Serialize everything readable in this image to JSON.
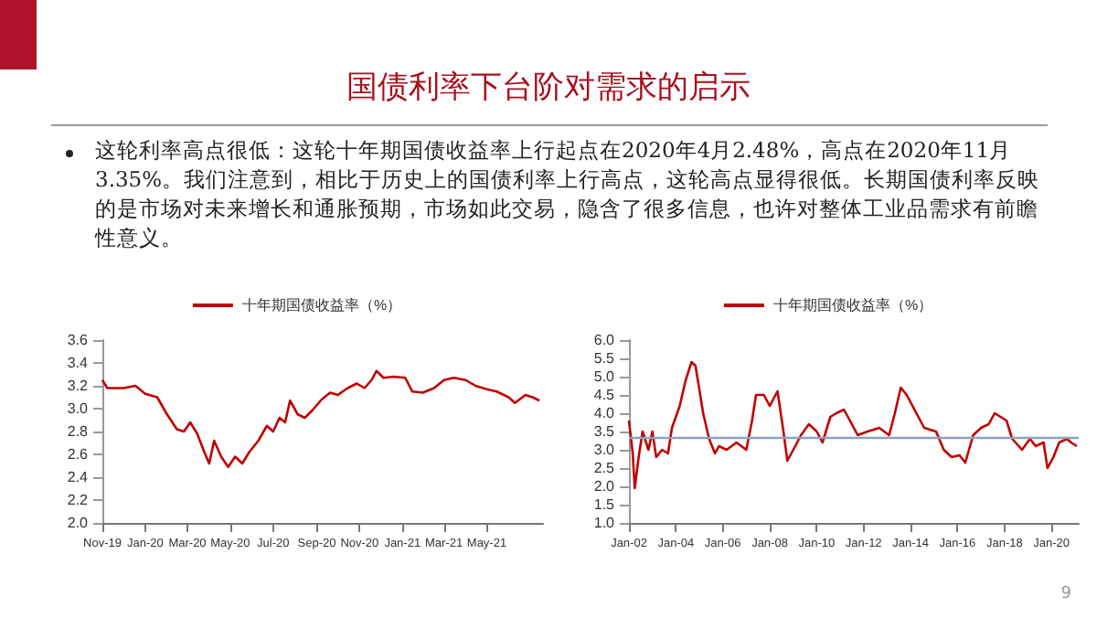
{
  "chart_data": [
    {
      "type": "other",
      "title": "国债利率下台阶对需求的启示",
      "annotations": [
        "这轮利率高点很低：这轮十年期国债收益率上行起点在2020年4月2.48%，高点在2020年11月3.35%。我们注意到，相比于历史上的国债利率上行高点，这轮高点显得很低。长期国债利率反映的是市场对未来增长和通胀预期，市场如此交易，隐含了很多信息，也许对整体工业品需求有前瞻性意义。",
        "9"
      ]
    },
    {
      "type": "line",
      "legend": "top",
      "grid": false,
      "marker": "none",
      "line_style": "solid",
      "xlim": [
        "2019-11-01",
        "2021-07-20"
      ],
      "xticks": [
        {
          "value": "2019-11-01",
          "label": "Nov-19"
        },
        {
          "value": "2020-01-01",
          "label": "Jan-20"
        },
        {
          "value": "2020-03-01",
          "label": "Mar-20"
        },
        {
          "value": "2020-05-01",
          "label": "May-20"
        },
        {
          "value": "2020-07-01",
          "label": "Jul-20"
        },
        {
          "value": "2020-09-01",
          "label": "Sep-20"
        },
        {
          "value": "2020-11-01",
          "label": "Nov-20"
        },
        {
          "value": "2021-01-01",
          "label": "Jan-21"
        },
        {
          "value": "2021-03-01",
          "label": "Mar-21"
        },
        {
          "value": "2021-05-01",
          "label": "May-21"
        }
      ],
      "ylim": [
        2.0,
        3.6
      ],
      "yticks": [
        {
          "value": 2.0,
          "label": "2.0"
        },
        {
          "value": 2.2,
          "label": "2.2"
        },
        {
          "value": 2.4,
          "label": "2.4"
        },
        {
          "value": 2.6,
          "label": "2.6"
        },
        {
          "value": 2.8,
          "label": "2.8"
        },
        {
          "value": 3.0,
          "label": "3.0"
        },
        {
          "value": 3.2,
          "label": "3.2"
        },
        {
          "value": 3.4,
          "label": "3.4"
        },
        {
          "value": 3.6,
          "label": "3.6"
        }
      ],
      "series": [
        {
          "name": "十年期国债收益率（%）",
          "color": "#c00000",
          "x": [
            "2019-11-01",
            "2019-11-08",
            "2019-12-01",
            "2019-12-18",
            "2020-01-01",
            "2020-01-18",
            "2020-02-01",
            "2020-02-15",
            "2020-02-25",
            "2020-03-05",
            "2020-03-15",
            "2020-03-25",
            "2020-04-01",
            "2020-04-08",
            "2020-04-18",
            "2020-04-28",
            "2020-05-08",
            "2020-05-18",
            "2020-05-28",
            "2020-06-10",
            "2020-06-22",
            "2020-07-01",
            "2020-07-10",
            "2020-07-18",
            "2020-07-25",
            "2020-08-05",
            "2020-08-15",
            "2020-08-25",
            "2020-09-08",
            "2020-09-20",
            "2020-10-01",
            "2020-10-15",
            "2020-10-28",
            "2020-11-08",
            "2020-11-18",
            "2020-11-25",
            "2020-12-05",
            "2020-12-20",
            "2021-01-05",
            "2021-01-15",
            "2021-01-30",
            "2021-02-15",
            "2021-03-01",
            "2021-03-15",
            "2021-04-01",
            "2021-04-15",
            "2021-05-01",
            "2021-05-15",
            "2021-06-01",
            "2021-06-10",
            "2021-06-25",
            "2021-07-05",
            "2021-07-15"
          ],
          "values": [
            3.25,
            3.18,
            3.18,
            3.2,
            3.13,
            3.1,
            2.95,
            2.82,
            2.8,
            2.88,
            2.78,
            2.62,
            2.52,
            2.72,
            2.58,
            2.49,
            2.58,
            2.52,
            2.62,
            2.72,
            2.85,
            2.8,
            2.92,
            2.88,
            3.07,
            2.95,
            2.92,
            2.98,
            3.08,
            3.14,
            3.12,
            3.18,
            3.22,
            3.18,
            3.25,
            3.33,
            3.27,
            3.28,
            3.27,
            3.15,
            3.14,
            3.18,
            3.25,
            3.27,
            3.25,
            3.2,
            3.17,
            3.15,
            3.1,
            3.05,
            3.12,
            3.1,
            3.07
          ]
        }
      ]
    },
    {
      "type": "line",
      "legend": "top",
      "grid": false,
      "marker": "none",
      "line_style": "solid",
      "xlim": [
        "2002-01",
        "2021-03"
      ],
      "xticks": [
        {
          "value": "2002-01",
          "label": "Jan-02"
        },
        {
          "value": "2004-01",
          "label": "Jan-04"
        },
        {
          "value": "2006-01",
          "label": "Jan-06"
        },
        {
          "value": "2008-01",
          "label": "Jan-08"
        },
        {
          "value": "2010-01",
          "label": "Jan-10"
        },
        {
          "value": "2012-01",
          "label": "Jan-12"
        },
        {
          "value": "2014-01",
          "label": "Jan-14"
        },
        {
          "value": "2016-01",
          "label": "Jan-16"
        },
        {
          "value": "2018-01",
          "label": "Jan-18"
        },
        {
          "value": "2020-01",
          "label": "Jan-20"
        }
      ],
      "ylim": [
        1.0,
        6.0
      ],
      "yticks": [
        {
          "value": 1.0,
          "label": "1.0"
        },
        {
          "value": 1.5,
          "label": "1.5"
        },
        {
          "value": 2.0,
          "label": "2.0"
        },
        {
          "value": 2.5,
          "label": "2.5"
        },
        {
          "value": 3.0,
          "label": "3.0"
        },
        {
          "value": 3.5,
          "label": "3.5"
        },
        {
          "value": 4.0,
          "label": "4.0"
        },
        {
          "value": 4.5,
          "label": "4.5"
        },
        {
          "value": 5.0,
          "label": "5.0"
        },
        {
          "value": 5.5,
          "label": "5.5"
        },
        {
          "value": 6.0,
          "label": "6.0"
        }
      ],
      "ref_lines": [
        {
          "axis": "y",
          "value": 3.35,
          "label": null,
          "color": "#8ca3bd"
        }
      ],
      "series": [
        {
          "name": "十年期国债收益率（%）",
          "color": "#c00000",
          "x": [
            "2002-01",
            "2002-03",
            "2002-04",
            "2002-06",
            "2002-08",
            "2002-11",
            "2003-01",
            "2003-03",
            "2003-06",
            "2003-09",
            "2003-11",
            "2004-03",
            "2004-06",
            "2004-09",
            "2004-11",
            "2005-03",
            "2005-06",
            "2005-09",
            "2005-11",
            "2006-03",
            "2006-08",
            "2007-01",
            "2007-04",
            "2007-06",
            "2007-10",
            "2008-01",
            "2008-05",
            "2008-08",
            "2008-10",
            "2009-02",
            "2009-05",
            "2009-09",
            "2010-01",
            "2010-04",
            "2010-08",
            "2010-11",
            "2011-03",
            "2011-06",
            "2011-10",
            "2012-03",
            "2012-09",
            "2013-02",
            "2013-05",
            "2013-08",
            "2013-11",
            "2014-04",
            "2014-08",
            "2015-02",
            "2015-06",
            "2015-10",
            "2016-02",
            "2016-05",
            "2016-09",
            "2017-01",
            "2017-05",
            "2017-08",
            "2018-02",
            "2018-05",
            "2018-10",
            "2019-02",
            "2019-05",
            "2019-09",
            "2019-11",
            "2020-02",
            "2020-05",
            "2020-09",
            "2020-11",
            "2021-02"
          ],
          "values": [
            3.8,
            2.9,
            1.95,
            2.8,
            3.5,
            3.0,
            3.5,
            2.8,
            3.0,
            2.9,
            3.6,
            4.2,
            4.9,
            5.4,
            5.3,
            4.0,
            3.3,
            2.9,
            3.1,
            3.0,
            3.2,
            3.0,
            3.8,
            4.5,
            4.5,
            4.2,
            4.6,
            3.5,
            2.7,
            3.1,
            3.4,
            3.7,
            3.5,
            3.2,
            3.9,
            4.0,
            4.1,
            3.8,
            3.4,
            3.5,
            3.6,
            3.4,
            4.0,
            4.7,
            4.5,
            4.0,
            3.6,
            3.5,
            3.0,
            2.8,
            2.85,
            2.65,
            3.4,
            3.6,
            3.7,
            4.0,
            3.8,
            3.3,
            3.0,
            3.3,
            3.1,
            3.2,
            2.5,
            2.8,
            3.2,
            3.3,
            3.2,
            3.1
          ]
        }
      ]
    }
  ]
}
